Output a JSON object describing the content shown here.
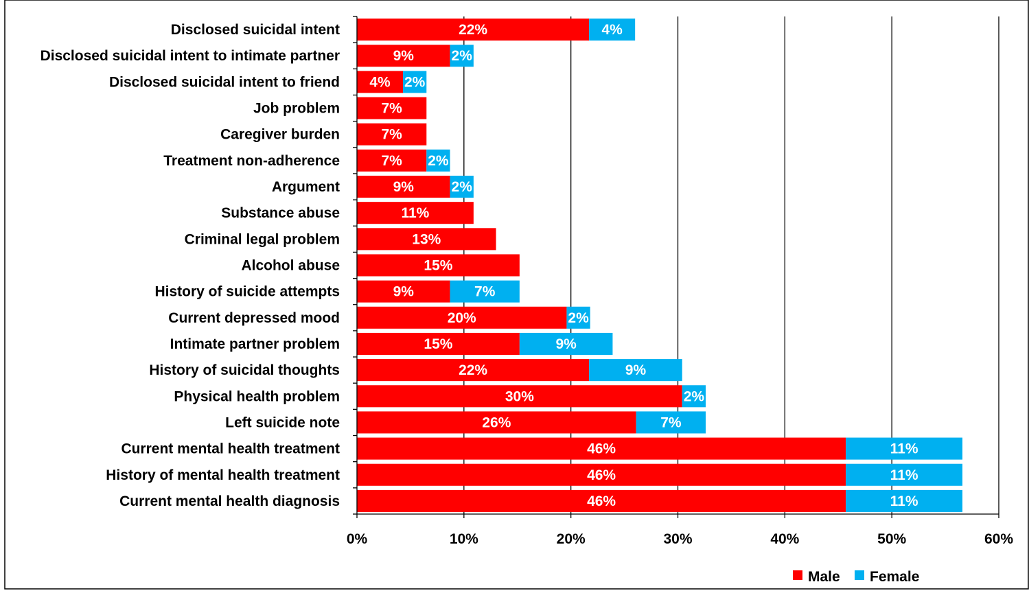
{
  "chart_data": {
    "type": "bar",
    "orientation": "horizontal",
    "stacked": true,
    "categories": [
      "Disclosed suicidal intent",
      "Disclosed suicidal intent to intimate partner",
      "Disclosed suicidal intent to friend",
      "Job problem",
      "Caregiver burden",
      "Treatment non-adherence",
      "Argument",
      "Substance abuse",
      "Criminal legal problem",
      "Alcohol abuse",
      "History of suicide attempts",
      "Current depressed mood",
      "Intimate partner problem",
      "History of suicidal thoughts",
      "Physical health problem",
      "Left suicide note",
      "Current mental health treatment",
      "History of mental health treatment",
      "Current mental health diagnosis"
    ],
    "series": [
      {
        "name": "Male",
        "color": "#ff0000",
        "values": [
          21.7,
          8.7,
          4.3,
          6.5,
          6.5,
          6.5,
          8.7,
          10.9,
          13.0,
          15.2,
          8.7,
          19.6,
          15.2,
          21.7,
          30.4,
          26.1,
          45.7,
          45.7,
          45.7
        ],
        "labels": [
          "22%",
          "9%",
          "4%",
          "7%",
          "7%",
          "7%",
          "9%",
          "11%",
          "13%",
          "15%",
          "9%",
          "20%",
          "15%",
          "22%",
          "30%",
          "26%",
          "46%",
          "46%",
          "46%"
        ]
      },
      {
        "name": "Female",
        "color": "#00b0f0",
        "values": [
          4.3,
          2.2,
          2.2,
          0,
          0,
          2.2,
          2.2,
          0,
          0,
          0,
          6.5,
          2.2,
          8.7,
          8.7,
          2.2,
          6.5,
          10.9,
          10.9,
          10.9
        ],
        "labels": [
          "4%",
          "2%",
          "2%",
          "",
          "",
          "2%",
          "2%",
          "",
          "",
          "",
          "7%",
          "2%",
          "9%",
          "9%",
          "2%",
          "7%",
          "11%",
          "11%",
          "11%"
        ]
      }
    ],
    "xlim": [
      0,
      60
    ],
    "xticks": [
      "0%",
      "10%",
      "20%",
      "30%",
      "40%",
      "50%",
      "60%"
    ],
    "grid": "vertical",
    "legend": "bottom-right",
    "title": "",
    "xlabel": "",
    "ylabel": ""
  }
}
